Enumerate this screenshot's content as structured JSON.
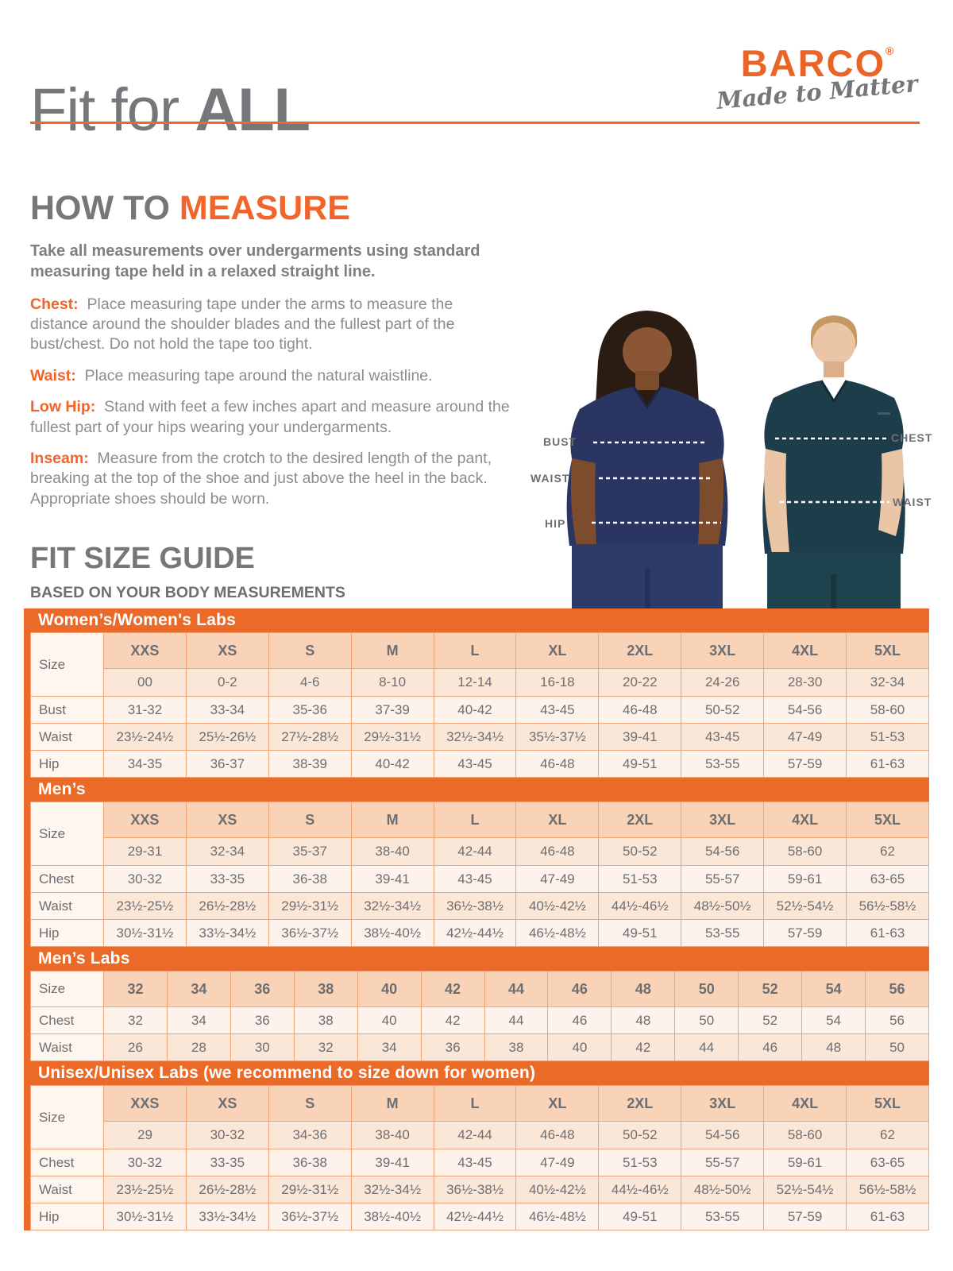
{
  "header": {
    "title_regular": "Fit for ",
    "title_bold": "ALL"
  },
  "brand": {
    "name": "BARCO",
    "registered": "®",
    "tagline": "Made to Matter"
  },
  "how_to_measure": {
    "heading_gray": "HOW TO ",
    "heading_orange": "MEASURE",
    "intro": "Take all measurements over undergarments using standard measuring tape held in a relaxed straight line.",
    "items": [
      {
        "label": "Chest:",
        "text": "Place measuring tape under the arms to measure the distance around the shoulder blades and the fullest part of the bust/chest. Do not hold the tape too tight."
      },
      {
        "label": "Waist:",
        "text": "Place measuring tape around the natural waistline."
      },
      {
        "label": "Low Hip:",
        "text": "Stand with feet a few inches apart and measure around the fullest part of your hips wearing your undergarments."
      },
      {
        "label": "Inseam:",
        "text": "Measure from the crotch to the desired length of the pant, breaking at the top of the shoe and just above the heel in the back. Appropriate shoes should be worn."
      }
    ]
  },
  "figure_labels": {
    "bust": "BUST",
    "waist_female": "WAIST",
    "hip": "HIP",
    "chest": "CHEST",
    "waist_male": "WAIST"
  },
  "size_guide": {
    "heading": "FIT SIZE GUIDE",
    "subheading": "BASED ON YOUR BODY MEASUREMENTS",
    "tables": [
      {
        "title": "Women’s/Women's Labs",
        "size_label": "Size",
        "sizes": [
          "XXS",
          "XS",
          "S",
          "M",
          "L",
          "XL",
          "2XL",
          "3XL",
          "4XL",
          "5XL"
        ],
        "numeric": [
          "00",
          "0-2",
          "4-6",
          "8-10",
          "12-14",
          "16-18",
          "20-22",
          "24-26",
          "28-30",
          "32-34"
        ],
        "rows": [
          {
            "label": "Bust",
            "values": [
              "31-32",
              "33-34",
              "35-36",
              "37-39",
              "40-42",
              "43-45",
              "46-48",
              "50-52",
              "54-56",
              "58-60"
            ]
          },
          {
            "label": "Waist",
            "values": [
              "23½-24½",
              "25½-26½",
              "27½-28½",
              "29½-31½",
              "32½-34½",
              "35½-37½",
              "39-41",
              "43-45",
              "47-49",
              "51-53"
            ]
          },
          {
            "label": "Hip",
            "values": [
              "34-35",
              "36-37",
              "38-39",
              "40-42",
              "43-45",
              "46-48",
              "49-51",
              "53-55",
              "57-59",
              "61-63"
            ]
          }
        ]
      },
      {
        "title": "Men’s",
        "size_label": "Size",
        "sizes": [
          "XXS",
          "XS",
          "S",
          "M",
          "L",
          "XL",
          "2XL",
          "3XL",
          "4XL",
          "5XL"
        ],
        "numeric": [
          "29-31",
          "32-34",
          "35-37",
          "38-40",
          "42-44",
          "46-48",
          "50-52",
          "54-56",
          "58-60",
          "62"
        ],
        "rows": [
          {
            "label": "Chest",
            "values": [
              "30-32",
              "33-35",
              "36-38",
              "39-41",
              "43-45",
              "47-49",
              "51-53",
              "55-57",
              "59-61",
              "63-65"
            ]
          },
          {
            "label": "Waist",
            "values": [
              "23½-25½",
              "26½-28½",
              "29½-31½",
              "32½-34½",
              "36½-38½",
              "40½-42½",
              "44½-46½",
              "48½-50½",
              "52½-54½",
              "56½-58½"
            ]
          },
          {
            "label": "Hip",
            "values": [
              "30½-31½",
              "33½-34½",
              "36½-37½",
              "38½-40½",
              "42½-44½",
              "46½-48½",
              "49-51",
              "53-55",
              "57-59",
              "61-63"
            ]
          }
        ]
      },
      {
        "title": "Men’s Labs",
        "size_label": "Size",
        "sizes": [
          "32",
          "34",
          "36",
          "38",
          "40",
          "42",
          "44",
          "46",
          "48",
          "50",
          "52",
          "54",
          "56"
        ],
        "rows": [
          {
            "label": "Chest",
            "values": [
              "32",
              "34",
              "36",
              "38",
              "40",
              "42",
              "44",
              "46",
              "48",
              "50",
              "52",
              "54",
              "56"
            ]
          },
          {
            "label": "Waist",
            "values": [
              "26",
              "28",
              "30",
              "32",
              "34",
              "36",
              "38",
              "40",
              "42",
              "44",
              "46",
              "48",
              "50"
            ]
          }
        ]
      },
      {
        "title": "Unisex/Unisex Labs (we recommend to size down for women)",
        "size_label": "Size",
        "sizes": [
          "XXS",
          "XS",
          "S",
          "M",
          "L",
          "XL",
          "2XL",
          "3XL",
          "4XL",
          "5XL"
        ],
        "numeric": [
          "29",
          "30-32",
          "34-36",
          "38-40",
          "42-44",
          "46-48",
          "50-52",
          "54-56",
          "58-60",
          "62"
        ],
        "rows": [
          {
            "label": "Chest",
            "values": [
              "30-32",
              "33-35",
              "36-38",
              "39-41",
              "43-45",
              "47-49",
              "51-53",
              "55-57",
              "59-61",
              "63-65"
            ]
          },
          {
            "label": "Waist",
            "values": [
              "23½-25½",
              "26½-28½",
              "29½-31½",
              "32½-34½",
              "36½-38½",
              "40½-42½",
              "44½-46½",
              "48½-50½",
              "52½-54½",
              "56½-58½"
            ]
          },
          {
            "label": "Hip",
            "values": [
              "30½-31½",
              "33½-34½",
              "36½-37½",
              "38½-40½",
              "42½-44½",
              "46½-48½",
              "49-51",
              "53-55",
              "57-59",
              "61-63"
            ]
          }
        ]
      }
    ]
  },
  "colors": {
    "accent_orange": "#EB6A28",
    "heading_orange": "#F2642A",
    "title_gray": "#76777A",
    "body_gray": "#808285",
    "table_text_gray": "#6D6E71",
    "table_border": "#F2A476",
    "size_head_peach": "#F8D3B7",
    "row_light": "#FDF3EC",
    "row_dark": "#FBE7D8",
    "label_cell": "#FEF6EF",
    "scrubs_navy": "#2A3561",
    "scrubs_teal": "#1E3D4A"
  }
}
